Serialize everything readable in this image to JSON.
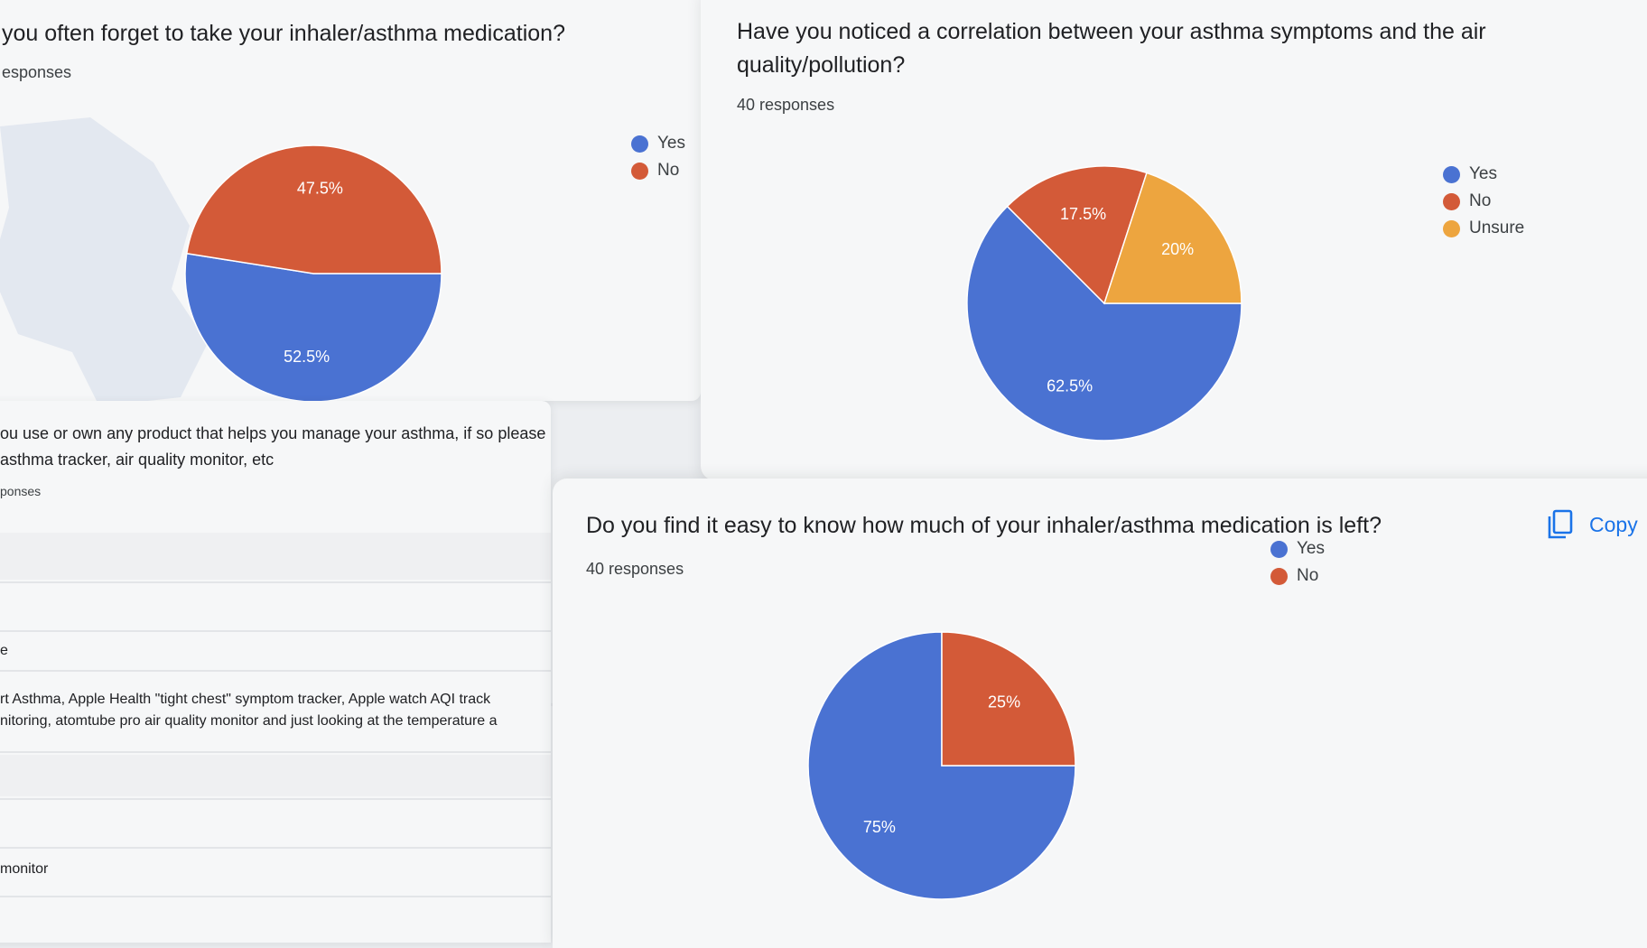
{
  "card1": {
    "title": "you often forget to take your inhaler/asthma medication?",
    "count": "esponses"
  },
  "card2": {
    "title_line1": "Have you noticed a correlation between your asthma symptoms and the air",
    "title_line2": "quality/pollution?",
    "count": "40 responses"
  },
  "card3": {
    "title": "Do you find it easy to know how much of your inhaler/asthma medication is left?",
    "count": "40 responses",
    "copy_label": "Copy"
  },
  "card4": {
    "question_line1": "ou use or own any product that helps you manage your asthma, if so please name whic",
    "question_line2": "asthma tracker, air quality monitor, etc",
    "count": "ponses",
    "responses": [
      "e",
      "rt Asthma, Apple Health \"tight chest\" symptom tracker, Apple watch AQI track",
      "nitoring, atomtube pro air quality monitor and just looking at the temperature a",
      "monitor"
    ]
  },
  "colors": {
    "yes": "#4a72d2",
    "no": "#d35a38",
    "unsure": "#eda53f"
  },
  "chart_data": [
    {
      "type": "pie",
      "title": "you often forget to take your inhaler/asthma medication?",
      "categories": [
        "Yes",
        "No"
      ],
      "values": [
        52.5,
        47.5
      ],
      "labels": [
        "52.5%",
        "47.5%"
      ],
      "legend": "right"
    },
    {
      "type": "pie",
      "title": "Have you noticed a correlation between your asthma symptoms and the air quality/pollution?",
      "categories": [
        "Yes",
        "No",
        "Unsure"
      ],
      "values": [
        62.5,
        17.5,
        20
      ],
      "labels": [
        "62.5%",
        "17.5%",
        "20%"
      ],
      "legend": "right"
    },
    {
      "type": "pie",
      "title": "Do you find it easy to know how much of your inhaler/asthma medication is left?",
      "categories": [
        "Yes",
        "No"
      ],
      "values": [
        75,
        25
      ],
      "labels": [
        "75%",
        "25%"
      ],
      "legend": "right"
    }
  ]
}
